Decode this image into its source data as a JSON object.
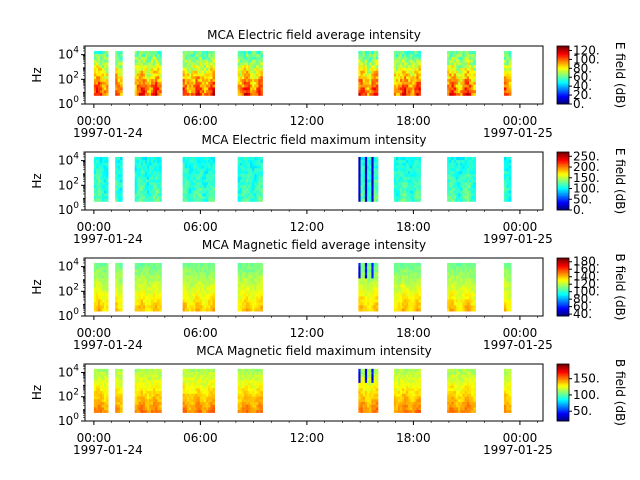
{
  "chart_data": [
    {
      "type": "heatmap",
      "title": "MCA  Electric field average intensity",
      "ylabel": "Hz",
      "colorbar_label": "E field (dB)",
      "colorbar_ticks": [
        "0.",
        "20.",
        "40.",
        "60.",
        "80.",
        "100.",
        "120."
      ],
      "colorbar_range": [
        0,
        130
      ],
      "y_ticks": [
        "10^0",
        "10^2",
        "10^4"
      ],
      "ylim_log10": [
        0,
        4.7
      ],
      "x_ticks": [
        "00:00",
        "06:00",
        "12:00",
        "18:00",
        "00:00"
      ],
      "x_dates": [
        "1997-01-24",
        "1997-01-25"
      ],
      "xlim_hours": [
        -0.5,
        25.3
      ],
      "data_freq_range_log10": [
        0.7,
        4.3
      ],
      "level_low": 105,
      "level_high": 60,
      "variability": 22
    },
    {
      "type": "heatmap",
      "title": "MCA  Electric field maximum intensity",
      "ylabel": "Hz",
      "colorbar_label": "E field (dB)",
      "colorbar_ticks": [
        "0.",
        "50.",
        "100.",
        "150.",
        "200.",
        "250."
      ],
      "colorbar_range": [
        0,
        270
      ],
      "y_ticks": [
        "10^0",
        "10^2",
        "10^4"
      ],
      "ylim_log10": [
        0,
        4.7
      ],
      "x_ticks": [
        "00:00",
        "06:00",
        "12:00",
        "18:00",
        "00:00"
      ],
      "x_dates": [
        "1997-01-24",
        "1997-01-25"
      ],
      "xlim_hours": [
        -0.5,
        25.3
      ],
      "data_freq_range_log10": [
        0.7,
        4.3
      ],
      "level_low": 120,
      "level_high": 105,
      "variability": 25
    },
    {
      "type": "heatmap",
      "title": "MCA  Magnetic field average intensity",
      "ylabel": "Hz",
      "colorbar_label": "B field (dB)",
      "colorbar_ticks": [
        "40.",
        "60.",
        "80.",
        "100.",
        "120.",
        "140.",
        "160.",
        "180."
      ],
      "colorbar_range": [
        35,
        190
      ],
      "y_ticks": [
        "10^0",
        "10^2",
        "10^4"
      ],
      "ylim_log10": [
        0,
        4.7
      ],
      "x_ticks": [
        "00:00",
        "06:00",
        "12:00",
        "18:00",
        "00:00"
      ],
      "x_dates": [
        "1997-01-24",
        "1997-01-25"
      ],
      "xlim_hours": [
        -0.5,
        25.3
      ],
      "data_freq_range_log10": [
        0.4,
        4.3
      ],
      "level_low": 140,
      "level_high": 110,
      "variability": 10
    },
    {
      "type": "heatmap",
      "title": "MCA  Magnetic field maximum intensity",
      "ylabel": "Hz",
      "colorbar_label": "B field (dB)",
      "colorbar_ticks": [
        "50.",
        "100.",
        "150."
      ],
      "colorbar_range": [
        20,
        195
      ],
      "y_ticks": [
        "10^0",
        "10^2",
        "10^4"
      ],
      "ylim_log10": [
        0,
        4.7
      ],
      "x_ticks": [
        "00:00",
        "06:00",
        "12:00",
        "18:00",
        "00:00"
      ],
      "x_dates": [
        "1997-01-24",
        "1997-01-25"
      ],
      "xlim_hours": [
        -0.5,
        25.3
      ],
      "data_freq_range_log10": [
        0.7,
        4.3
      ],
      "level_low": 150,
      "level_high": 115,
      "variability": 12
    }
  ],
  "data_intervals_hours": [
    [
      0.0,
      0.8
    ],
    [
      1.2,
      1.6
    ],
    [
      2.3,
      3.8
    ],
    [
      5.0,
      6.8
    ],
    [
      8.1,
      9.5
    ],
    [
      14.9,
      16.0
    ],
    [
      16.9,
      18.4
    ],
    [
      19.9,
      21.5
    ],
    [
      23.1,
      23.5
    ]
  ]
}
